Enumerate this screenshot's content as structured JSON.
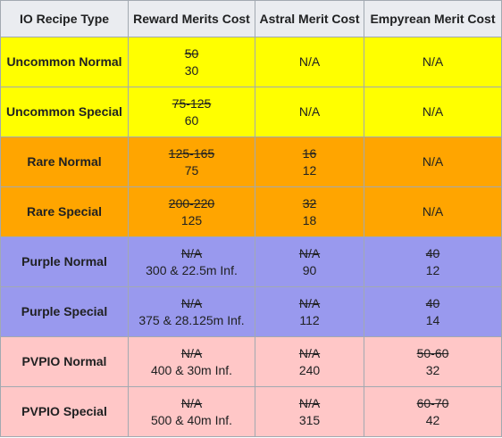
{
  "headers": [
    "IO Recipe Type",
    "Reward Merits Cost",
    "Astral Merit Cost",
    "Empyrean Merit Cost"
  ],
  "rows": [
    {
      "type": "Uncommon Normal",
      "color": "#ffff00",
      "reward_old": "50",
      "reward_new": "30",
      "astral_old": "",
      "astral_new": "N/A",
      "emp_old": "",
      "emp_new": "N/A"
    },
    {
      "type": "Uncommon Special",
      "color": "#ffff00",
      "reward_old": "75-125",
      "reward_new": "60",
      "astral_old": "",
      "astral_new": "N/A",
      "emp_old": "",
      "emp_new": "N/A"
    },
    {
      "type": "Rare Normal",
      "color": "#ffa500",
      "reward_old": "125-165",
      "reward_new": "75",
      "astral_old": "16",
      "astral_new": "12",
      "emp_old": "",
      "emp_new": "N/A"
    },
    {
      "type": "Rare Special",
      "color": "#ffa500",
      "reward_old": "200-220",
      "reward_new": "125",
      "astral_old": "32",
      "astral_new": "18",
      "emp_old": "",
      "emp_new": "N/A"
    },
    {
      "type": "Purple Normal",
      "color": "#9999ee",
      "reward_old": "N/A",
      "reward_new": "300 & 22.5m Inf.",
      "astral_old": "N/A",
      "astral_new": "90",
      "emp_old": "40",
      "emp_new": "12"
    },
    {
      "type": "Purple Special",
      "color": "#9999ee",
      "reward_old": "N/A",
      "reward_new": "375 & 28.125m Inf.",
      "astral_old": "N/A",
      "astral_new": "112",
      "emp_old": "40",
      "emp_new": "14"
    },
    {
      "type": "PVPIO Normal",
      "color": "#ffc7c7",
      "reward_old": "N/A",
      "reward_new": "400 & 30m Inf.",
      "astral_old": "N/A",
      "astral_new": "240",
      "emp_old": "50-60",
      "emp_new": "32"
    },
    {
      "type": "PVPIO Special",
      "color": "#ffc7c7",
      "reward_old": "N/A",
      "reward_new": "500 & 40m Inf.",
      "astral_old": "N/A",
      "astral_new": "315",
      "emp_old": "60-70",
      "emp_new": "42"
    }
  ]
}
